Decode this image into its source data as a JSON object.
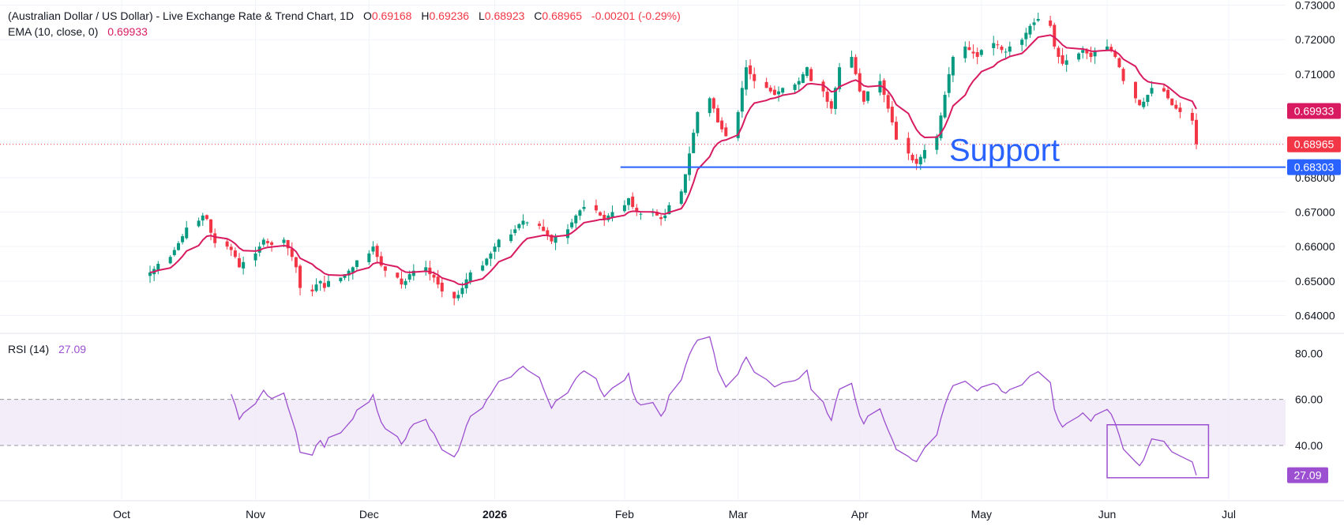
{
  "legend": {
    "title": "(Australian Dollar / US Dollar) - Live Exchange Rate & Trend Chart, 1D",
    "open_label": "O",
    "open": "0.69168",
    "high_label": "H",
    "high": "0.69236",
    "low_label": "L",
    "low": "0.68923",
    "close_label": "C",
    "close": "0.68965",
    "change": "-0.00201 (-0.29%)",
    "ema_label": "EMA (10, close, 0)",
    "ema_value": "0.69933",
    "rsi_label": "RSI (14)",
    "rsi_value": "27.09"
  },
  "colors": {
    "up": "#089981",
    "down": "#f23645",
    "ema": "#d81b60",
    "rsi": "#9c4fd0",
    "support": "#2962ff",
    "band": "#ede7f6",
    "grid": "#f0f3fa",
    "text": "#131722"
  },
  "chart_data": [
    {
      "type": "candlestick",
      "price_axis_ticks": [
        "0.73000",
        "0.72000",
        "0.71000",
        "0.70000",
        "0.69000",
        "0.68000",
        "0.67000",
        "0.66000",
        "0.65000",
        "0.64000"
      ],
      "ylim": [
        0.6353,
        0.7315
      ],
      "time_axis_ticks": [
        {
          "label": "Oct",
          "date": "2025-10-01",
          "bold": false
        },
        {
          "label": "Nov",
          "date": "2025-11-03",
          "bold": false
        },
        {
          "label": "Dec",
          "date": "2025-12-01",
          "bold": false
        },
        {
          "label": "2026",
          "date": "2026-01-01",
          "bold": true
        },
        {
          "label": "Feb",
          "date": "2026-02-02",
          "bold": false
        },
        {
          "label": "Mar",
          "date": "2026-03-02",
          "bold": false
        },
        {
          "label": "Apr",
          "date": "2026-04-01",
          "bold": false
        },
        {
          "label": "May",
          "date": "2026-05-01",
          "bold": false
        },
        {
          "label": "Jun",
          "date": "2026-06-01",
          "bold": false
        },
        {
          "label": "Jul",
          "date": "2026-07-01",
          "bold": false
        }
      ],
      "xlim": [
        "2025-09-01",
        "2026-07-15"
      ],
      "last_date": "2026-06-23",
      "close_series": [
        0.6525,
        0.6535,
        0.655,
        0.657,
        0.659,
        0.661,
        0.663,
        0.6655,
        0.6675,
        0.669,
        0.668,
        0.664,
        0.661,
        0.66,
        0.659,
        0.657,
        0.654,
        0.6555,
        0.658,
        0.66,
        0.662,
        0.661,
        0.6605,
        0.662,
        0.6595,
        0.657,
        0.654,
        0.648,
        0.647,
        0.649,
        0.65,
        0.648,
        0.65,
        0.651,
        0.652,
        0.653,
        0.654,
        0.656,
        0.658,
        0.66,
        0.657,
        0.6545,
        0.653,
        0.651,
        0.649,
        0.65,
        0.652,
        0.653,
        0.654,
        0.652,
        0.651,
        0.649,
        0.647,
        0.645,
        0.646,
        0.648,
        0.6505,
        0.6525,
        0.6545,
        0.6565,
        0.658,
        0.66,
        0.662,
        0.6635,
        0.665,
        0.6665,
        0.6675,
        0.667,
        0.666,
        0.6645,
        0.663,
        0.6615,
        0.663,
        0.665,
        0.667,
        0.669,
        0.6705,
        0.6715,
        0.6705,
        0.669,
        0.668,
        0.669,
        0.67,
        0.672,
        0.674,
        0.6715,
        0.67,
        0.6695,
        0.67,
        0.669,
        0.668,
        0.669,
        0.672,
        0.676,
        0.681,
        0.687,
        0.693,
        0.699,
        0.703,
        0.7,
        0.696,
        0.694,
        0.692,
        0.699,
        0.706,
        0.712,
        0.71,
        0.708,
        0.706,
        0.705,
        0.704,
        0.705,
        0.706,
        0.707,
        0.708,
        0.71,
        0.712,
        0.708,
        0.705,
        0.702,
        0.7,
        0.706,
        0.712,
        0.715,
        0.71,
        0.705,
        0.702,
        0.705,
        0.708,
        0.704,
        0.7,
        0.696,
        0.691,
        0.687,
        0.685,
        0.684,
        0.686,
        0.688,
        0.692,
        0.698,
        0.704,
        0.71,
        0.715,
        0.718,
        0.717,
        0.716,
        0.715,
        0.717,
        0.719,
        0.7185,
        0.717,
        0.7165,
        0.718,
        0.72,
        0.722,
        0.724,
        0.725,
        0.726,
        0.724,
        0.718,
        0.715,
        0.713,
        0.714,
        0.716,
        0.717,
        0.716,
        0.715,
        0.7165,
        0.718,
        0.717,
        0.715,
        0.712,
        0.708,
        0.703,
        0.701,
        0.702,
        0.704,
        0.706,
        0.705,
        0.703,
        0.701,
        0.7,
        0.699,
        0.6965,
        0.6897
      ],
      "ema_last": 0.69933,
      "markers": [
        {
          "name": "ema-price-label",
          "value": 0.69933,
          "label": "0.69933",
          "color": "#d81b60"
        },
        {
          "name": "close-price-label",
          "value": 0.68965,
          "label": "0.68965",
          "color": "#f23645"
        },
        {
          "name": "support-price-label",
          "value": 0.68303,
          "label": "0.68303",
          "color": "#2962ff"
        }
      ],
      "annotations": [
        {
          "name": "support-line",
          "text": "Support",
          "value": 0.68303,
          "from_date": "2026-02-01",
          "color": "#2962ff"
        }
      ]
    },
    {
      "type": "line",
      "name": "RSI (14)",
      "ticks": [
        "80.00",
        "60.00",
        "40.00"
      ],
      "ylim": [
        16,
        88
      ],
      "band": [
        40,
        60
      ],
      "last_value": 27.09,
      "highlight_box": {
        "from_date": "2026-06-01",
        "to_date": "2026-06-26",
        "ylim": [
          26,
          49
        ]
      }
    }
  ]
}
